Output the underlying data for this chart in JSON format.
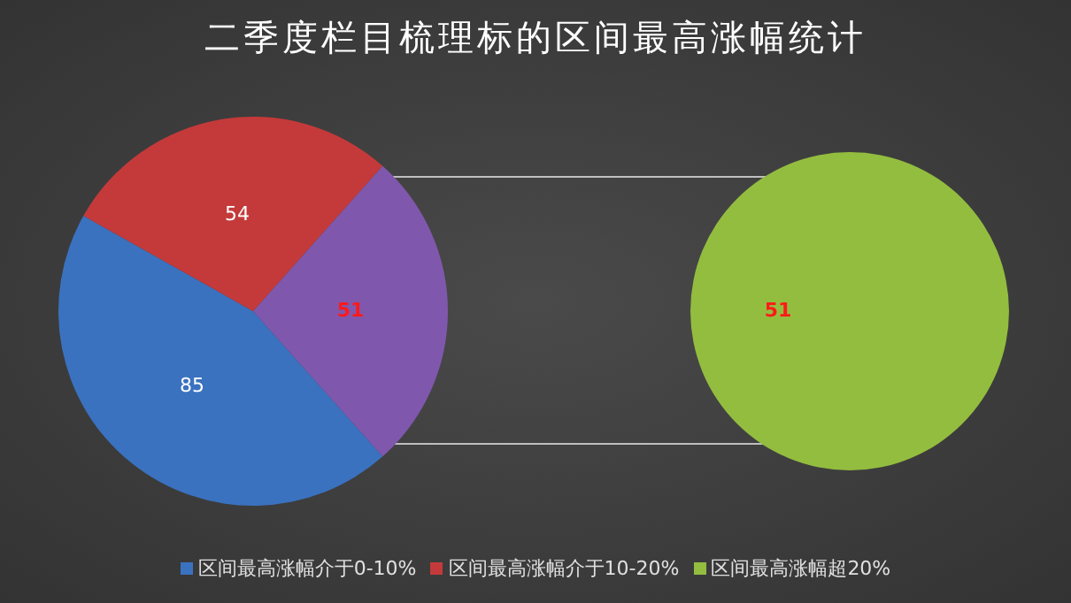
{
  "chart_data": [
    {
      "type": "pie",
      "title": "二季度栏目梳理标的区间最高涨幅统计",
      "categories": [
        "区间最高涨幅介于0-10%",
        "区间最高涨幅介于10-20%",
        null
      ],
      "values": [
        85,
        54,
        51
      ],
      "colors": [
        "#3a72c0",
        "#c43a3a",
        "#7f58ad"
      ],
      "data_labels": true,
      "legend": "bottom"
    },
    {
      "type": "pie",
      "categories": [
        "区间最高涨幅超20%"
      ],
      "values": [
        51
      ],
      "colors": [
        "#93bd3f"
      ],
      "data_labels": true,
      "legend": "bottom"
    }
  ]
}
